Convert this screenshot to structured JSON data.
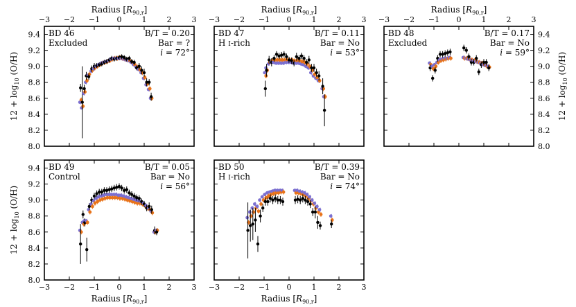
{
  "chart_data": {
    "type": "scatter",
    "shared": {
      "xlabel": "Radius [R90,r]",
      "ylabel": "12 + log10 (O/H)",
      "xlim": [
        -3,
        3
      ],
      "ylim": [
        8.0,
        9.5
      ],
      "xticks": [
        -3,
        -2,
        -1,
        0,
        1,
        2,
        3
      ],
      "yticks": [
        8.0,
        8.2,
        8.4,
        8.6,
        8.8,
        9.0,
        9.2,
        9.4
      ],
      "series_colors": {
        "black": "#000000",
        "orange": "#e8731a",
        "purple": "#7b6fd0"
      }
    },
    "panels": [
      {
        "name": "BD 46",
        "label": "Excluded",
        "bt": "B/T = 0.20",
        "bar": "Bar = ?",
        "incl": "i = 72°",
        "points": [
          [
            -1.55,
            8.73,
            0.05,
            8.58,
            8.55
          ],
          [
            -1.48,
            8.55,
            0.45,
            8.5,
            8.48
          ],
          [
            -1.4,
            8.72,
            0.05,
            8.68,
            8.66
          ],
          [
            -1.32,
            8.88,
            0.05,
            8.82,
            8.8
          ],
          [
            -1.22,
            8.87,
            0.04,
            8.9,
            8.89
          ],
          [
            -1.1,
            8.97,
            0.04,
            8.95,
            8.94
          ],
          [
            -1.0,
            9.0,
            0.04,
            8.98,
            8.97
          ],
          [
            -0.9,
            9.01,
            0.03,
            9.0,
            9.0
          ],
          [
            -0.8,
            9.02,
            0.03,
            9.02,
            9.02
          ],
          [
            -0.7,
            9.03,
            0.03,
            9.04,
            9.04
          ],
          [
            -0.6,
            9.05,
            0.03,
            9.05,
            9.05
          ],
          [
            -0.5,
            9.06,
            0.03,
            9.06,
            9.06
          ],
          [
            -0.4,
            9.08,
            0.03,
            9.07,
            9.07
          ],
          [
            -0.3,
            9.1,
            0.03,
            9.09,
            9.09
          ],
          [
            -0.2,
            9.09,
            0.03,
            9.1,
            9.1
          ],
          [
            -0.1,
            9.1,
            0.03,
            9.1,
            9.1
          ],
          [
            0.0,
            9.11,
            0.03,
            9.11,
            9.1
          ],
          [
            0.1,
            9.12,
            0.03,
            9.1,
            9.1
          ],
          [
            0.2,
            9.11,
            0.03,
            9.09,
            9.09
          ],
          [
            0.3,
            9.09,
            0.03,
            9.08,
            9.08
          ],
          [
            0.4,
            9.1,
            0.03,
            9.07,
            9.07
          ],
          [
            0.5,
            9.06,
            0.03,
            9.05,
            9.05
          ],
          [
            0.6,
            9.05,
            0.03,
            9.02,
            9.02
          ],
          [
            0.7,
            8.98,
            0.03,
            8.99,
            8.99
          ],
          [
            0.8,
            9.0,
            0.04,
            8.96,
            8.96
          ],
          [
            0.9,
            8.95,
            0.05,
            8.92,
            8.92
          ],
          [
            1.0,
            8.92,
            0.05,
            8.86,
            8.85
          ],
          [
            1.1,
            8.8,
            0.05,
            8.78,
            8.77
          ],
          [
            1.2,
            8.8,
            0.04,
            8.72,
            8.71
          ],
          [
            1.28,
            8.62,
            0.05,
            8.6,
            8.6
          ]
        ]
      },
      {
        "name": "BD 47",
        "label": "H I-rich",
        "bt": "B/T = 0.11",
        "bar": "Bar = No",
        "incl": "i = 53°",
        "points": [
          [
            -0.95,
            8.72,
            0.1,
            8.88,
            8.92
          ],
          [
            -0.9,
            8.95,
            0.08,
            8.95,
            8.98
          ],
          [
            -0.8,
            9.08,
            0.05,
            9.05,
            9.03
          ],
          [
            -0.7,
            9.05,
            0.05,
            9.07,
            9.05
          ],
          [
            -0.6,
            9.1,
            0.04,
            9.08,
            9.05
          ],
          [
            -0.5,
            9.15,
            0.04,
            9.08,
            9.04
          ],
          [
            -0.4,
            9.13,
            0.04,
            9.08,
            9.04
          ],
          [
            -0.3,
            9.14,
            0.04,
            9.08,
            9.04
          ],
          [
            -0.2,
            9.15,
            0.04,
            9.08,
            9.04
          ],
          [
            -0.1,
            9.12,
            0.04,
            9.08,
            9.05
          ],
          [
            0.0,
            9.08,
            0.04,
            9.08,
            9.05
          ],
          [
            0.1,
            9.07,
            0.04,
            9.08,
            9.05
          ],
          [
            0.2,
            9.04,
            0.04,
            9.07,
            9.04
          ],
          [
            0.3,
            9.12,
            0.05,
            9.07,
            9.04
          ],
          [
            0.4,
            9.1,
            0.04,
            9.07,
            9.04
          ],
          [
            0.5,
            9.13,
            0.04,
            9.06,
            9.03
          ],
          [
            0.6,
            9.1,
            0.04,
            9.05,
            9.02
          ],
          [
            0.7,
            9.05,
            0.04,
            9.03,
            9.0
          ],
          [
            0.8,
            9.08,
            0.05,
            9.0,
            8.98
          ],
          [
            0.9,
            8.98,
            0.05,
            8.95,
            8.92
          ],
          [
            1.0,
            8.98,
            0.05,
            8.9,
            8.88
          ],
          [
            1.1,
            8.92,
            0.05,
            8.86,
            8.85
          ],
          [
            1.2,
            8.88,
            0.06,
            8.82,
            8.82
          ],
          [
            1.35,
            8.75,
            0.1,
            8.72,
            8.72
          ],
          [
            1.42,
            8.45,
            0.2,
            8.62,
            8.62
          ]
        ]
      },
      {
        "name": "BD 48",
        "label": "Excluded",
        "bt": "B/T = 0.17",
        "bar": "Bar = No",
        "incl": "i = 59°",
        "points": [
          [
            -1.15,
            8.98,
            0.04,
            9.02,
            9.04
          ],
          [
            -1.05,
            8.85,
            0.04,
            8.97,
            9.0
          ],
          [
            -0.95,
            8.95,
            0.04,
            9.0,
            9.02
          ],
          [
            -0.85,
            9.1,
            0.04,
            9.05,
            9.05
          ],
          [
            -0.75,
            9.15,
            0.04,
            9.07,
            9.08
          ],
          [
            -0.65,
            9.15,
            0.04,
            9.08,
            9.09
          ],
          [
            -0.55,
            9.16,
            0.04,
            9.09,
            9.1
          ],
          [
            -0.45,
            9.17,
            0.04,
            9.1,
            9.1
          ],
          [
            -0.35,
            9.18,
            0.04,
            9.1,
            9.11
          ],
          [
            0.2,
            9.23,
            0.04,
            9.1,
            9.11
          ],
          [
            0.3,
            9.2,
            0.04,
            9.1,
            9.1
          ],
          [
            0.4,
            9.12,
            0.04,
            9.09,
            9.09
          ],
          [
            0.5,
            9.05,
            0.04,
            9.08,
            9.08
          ],
          [
            0.6,
            9.05,
            0.04,
            9.07,
            9.07
          ],
          [
            0.7,
            9.1,
            0.04,
            9.06,
            9.06
          ],
          [
            0.8,
            8.93,
            0.04,
            9.05,
            9.05
          ],
          [
            0.9,
            9.02,
            0.04,
            9.04,
            9.04
          ],
          [
            1.0,
            9.05,
            0.04,
            9.02,
            9.02
          ],
          [
            1.1,
            9.05,
            0.04,
            9.0,
            9.01
          ],
          [
            1.2,
            8.98,
            0.04,
            8.99,
            9.0
          ]
        ]
      },
      {
        "name": "BD 49",
        "label": "Control",
        "bt": "B/T = 0.05",
        "bar": "Bar = No",
        "incl": "i = 56°",
        "points": [
          [
            -1.55,
            8.45,
            0.25,
            8.6,
            8.62
          ],
          [
            -1.45,
            8.82,
            0.05,
            8.7,
            8.72
          ],
          [
            -1.38,
            8.72,
            0.05,
            8.72,
            8.74
          ],
          [
            -1.3,
            8.38,
            0.15,
            8.72,
            8.74
          ],
          [
            -1.2,
            8.92,
            0.04,
            8.85,
            8.88
          ],
          [
            -1.1,
            9.0,
            0.04,
            8.92,
            8.95
          ],
          [
            -1.0,
            9.05,
            0.04,
            8.96,
            8.99
          ],
          [
            -0.9,
            9.08,
            0.04,
            8.98,
            9.02
          ],
          [
            -0.8,
            9.1,
            0.04,
            9.0,
            9.04
          ],
          [
            -0.7,
            9.1,
            0.04,
            9.01,
            9.05
          ],
          [
            -0.6,
            9.12,
            0.04,
            9.02,
            9.06
          ],
          [
            -0.5,
            9.12,
            0.04,
            9.03,
            9.07
          ],
          [
            -0.4,
            9.13,
            0.04,
            9.03,
            9.07
          ],
          [
            -0.3,
            9.14,
            0.04,
            9.03,
            9.07
          ],
          [
            -0.2,
            9.15,
            0.04,
            9.03,
            9.07
          ],
          [
            -0.1,
            9.16,
            0.04,
            9.03,
            9.07
          ],
          [
            0.0,
            9.17,
            0.04,
            9.02,
            9.06
          ],
          [
            0.1,
            9.15,
            0.04,
            9.02,
            9.06
          ],
          [
            0.2,
            9.12,
            0.04,
            9.01,
            9.05
          ],
          [
            0.3,
            9.13,
            0.04,
            9.0,
            9.04
          ],
          [
            0.4,
            9.09,
            0.04,
            8.99,
            9.03
          ],
          [
            0.5,
            9.07,
            0.04,
            8.98,
            9.02
          ],
          [
            0.6,
            9.05,
            0.04,
            8.97,
            9.01
          ],
          [
            0.7,
            9.03,
            0.04,
            8.96,
            9.0
          ],
          [
            0.8,
            9.02,
            0.04,
            8.96,
            8.99
          ],
          [
            0.9,
            8.98,
            0.04,
            8.95,
            8.98
          ],
          [
            1.0,
            8.95,
            0.04,
            8.93,
            8.96
          ],
          [
            1.1,
            8.9,
            0.04,
            8.9,
            8.93
          ],
          [
            1.2,
            8.92,
            0.05,
            8.88,
            8.9
          ],
          [
            1.3,
            8.88,
            0.05,
            8.84,
            8.86
          ],
          [
            1.42,
            8.62,
            0.05,
            8.6,
            8.6
          ],
          [
            1.5,
            8.6,
            0.04,
            8.62,
            8.62
          ]
        ]
      },
      {
        "name": "BD 50",
        "label": "H I-rich",
        "bt": "B/T = 0.39",
        "bar": "Bar = No",
        "incl": "i = 74°",
        "points": [
          [
            -1.65,
            8.62,
            0.35,
            8.72,
            8.78
          ],
          [
            -1.55,
            8.68,
            0.2,
            8.8,
            8.85
          ],
          [
            -1.45,
            8.7,
            0.2,
            8.85,
            8.9
          ],
          [
            -1.35,
            8.75,
            0.15,
            8.9,
            8.95
          ],
          [
            -1.25,
            8.45,
            0.1,
            8.86,
            8.92
          ],
          [
            -1.15,
            8.8,
            0.08,
            8.95,
            9.0
          ],
          [
            -1.05,
            8.9,
            0.05,
            9.0,
            9.04
          ],
          [
            -0.95,
            8.98,
            0.05,
            9.03,
            9.07
          ],
          [
            -0.85,
            8.98,
            0.05,
            9.05,
            9.09
          ],
          [
            -0.75,
            9.02,
            0.05,
            9.07,
            9.1
          ],
          [
            -0.65,
            9.0,
            0.05,
            9.08,
            9.11
          ],
          [
            -0.55,
            9.02,
            0.05,
            9.09,
            9.12
          ],
          [
            -0.45,
            9.0,
            0.05,
            9.09,
            9.12
          ],
          [
            -0.35,
            9.0,
            0.05,
            9.1,
            9.12
          ],
          [
            -0.25,
            8.98,
            0.05,
            9.1,
            9.12
          ],
          [
            0.25,
            9.0,
            0.05,
            9.09,
            9.12
          ],
          [
            0.35,
            9.01,
            0.05,
            9.09,
            9.12
          ],
          [
            0.45,
            9.0,
            0.05,
            9.08,
            9.11
          ],
          [
            0.55,
            9.02,
            0.05,
            9.07,
            9.1
          ],
          [
            0.65,
            9.0,
            0.05,
            9.05,
            9.09
          ],
          [
            0.75,
            8.98,
            0.05,
            9.02,
            9.07
          ],
          [
            0.85,
            8.95,
            0.05,
            8.99,
            9.04
          ],
          [
            0.95,
            8.85,
            0.05,
            8.95,
            9.0
          ],
          [
            1.05,
            8.85,
            0.08,
            8.9,
            8.96
          ],
          [
            1.15,
            8.72,
            0.08,
            8.85,
            8.92
          ],
          [
            1.25,
            8.68,
            0.05,
            8.82,
            8.88
          ],
          [
            1.7,
            8.7,
            0.05,
            8.75,
            8.8
          ]
        ]
      }
    ]
  }
}
